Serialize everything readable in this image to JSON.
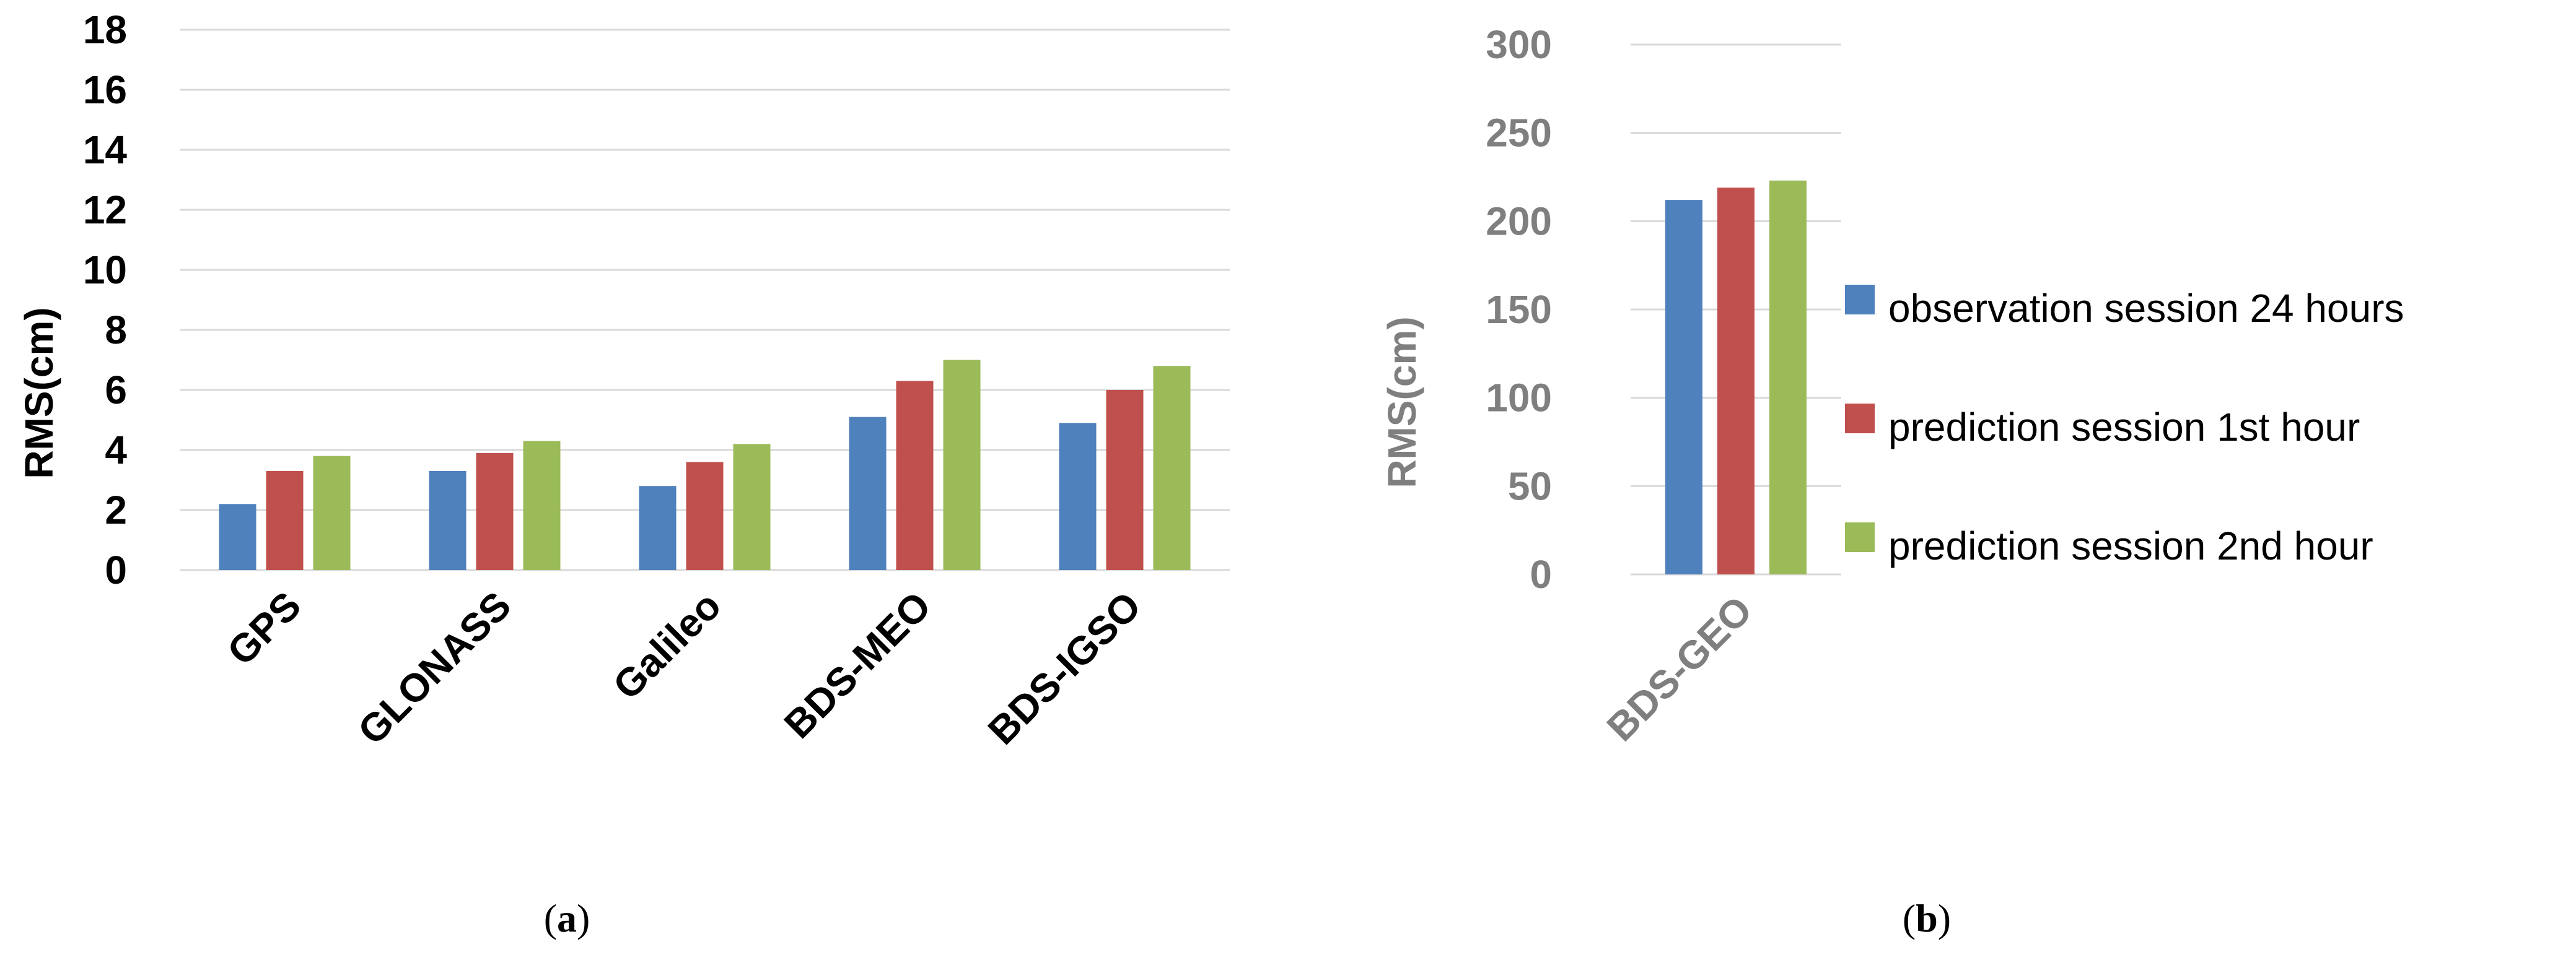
{
  "panel_labels": {
    "a": {
      "open": "(",
      "letter": "a",
      "close": ")"
    },
    "b": {
      "open": "(",
      "letter": "b",
      "close": ")"
    }
  },
  "colors": {
    "series": [
      "#4f81bd",
      "#c0504d",
      "#9bbb59"
    ],
    "grid": "#d9d9d9",
    "axis_a_text": "#000000",
    "axis_b_text": "#7f7f7f"
  },
  "legend": {
    "position": "right",
    "items": [
      "observation session 24 hours",
      "prediction session 1st hour",
      "prediction session 2nd hour"
    ]
  },
  "chart_data": [
    {
      "panel": "a",
      "type": "bar",
      "ylabel": "RMS(cm)",
      "ylim": [
        0,
        18
      ],
      "yticks": [
        0,
        2,
        4,
        6,
        8,
        10,
        12,
        14,
        16,
        18
      ],
      "grid": true,
      "categories": [
        "GPS",
        "GLONASS",
        "Galileo",
        "BDS-MEO",
        "BDS-IGSO"
      ],
      "series": [
        {
          "name": "observation session 24 hours",
          "values": [
            2.2,
            3.3,
            2.8,
            5.1,
            4.9
          ]
        },
        {
          "name": "prediction session 1st hour",
          "values": [
            3.3,
            3.9,
            3.6,
            6.3,
            6.0
          ]
        },
        {
          "name": "prediction session 2nd hour",
          "values": [
            3.8,
            4.3,
            4.2,
            7.0,
            6.8
          ]
        }
      ]
    },
    {
      "panel": "b",
      "type": "bar",
      "ylabel": "RMS(cm)",
      "ylim": [
        0,
        300
      ],
      "yticks": [
        0,
        50,
        100,
        150,
        200,
        250,
        300
      ],
      "grid": true,
      "categories": [
        "BDS-GEO"
      ],
      "series": [
        {
          "name": "observation session 24 hours",
          "values": [
            212
          ]
        },
        {
          "name": "prediction session 1st hour",
          "values": [
            219
          ]
        },
        {
          "name": "prediction session 2nd hour",
          "values": [
            223
          ]
        }
      ]
    }
  ]
}
